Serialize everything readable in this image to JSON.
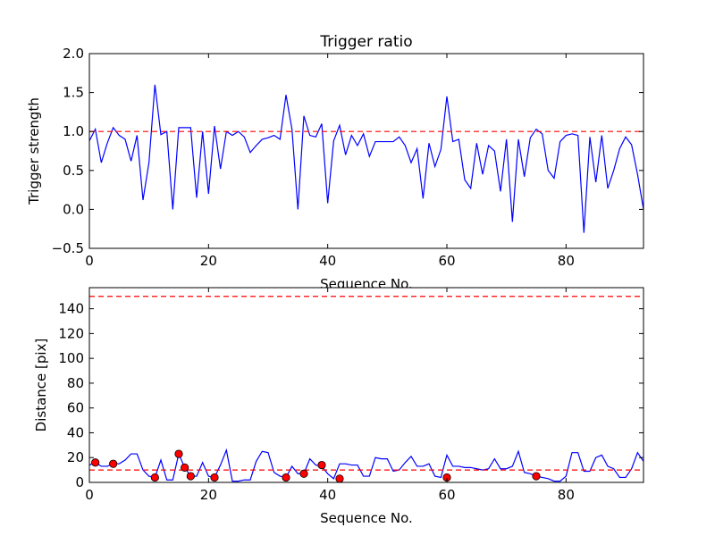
{
  "chart_data": [
    {
      "type": "line",
      "title": "Trigger ratio",
      "xlabel": "Sequence No.",
      "ylabel": "Trigger strength",
      "xlim": [
        0,
        93
      ],
      "ylim": [
        -0.5,
        2.0
      ],
      "xticks": [
        0,
        20,
        40,
        60,
        80
      ],
      "xtick_labels": [
        "0",
        "20",
        "40",
        "60",
        "80"
      ],
      "yticks": [
        -0.5,
        0.0,
        0.5,
        1.0,
        1.5,
        2.0
      ],
      "ytick_labels": [
        "−0.5",
        "0.0",
        "0.5",
        "1.0",
        "1.5",
        "2.0"
      ],
      "grid": false,
      "series": [
        {
          "color": "#0000ff",
          "style": "solid",
          "x": [
            0,
            1,
            2,
            3,
            4,
            5,
            6,
            7,
            8,
            9,
            10,
            11,
            12,
            13,
            14,
            15,
            16,
            17,
            18,
            19,
            20,
            21,
            22,
            23,
            24,
            25,
            26,
            27,
            28,
            29,
            30,
            31,
            32,
            33,
            34,
            35,
            36,
            37,
            38,
            39,
            40,
            41,
            42,
            43,
            44,
            45,
            46,
            47,
            48,
            49,
            50,
            51,
            52,
            53,
            54,
            55,
            56,
            57,
            58,
            59,
            60,
            61,
            62,
            63,
            64,
            65,
            66,
            67,
            68,
            69,
            70,
            71,
            72,
            73,
            74,
            75,
            76,
            77,
            78,
            79,
            80,
            81,
            82,
            83,
            84,
            85,
            86,
            87,
            88,
            89,
            90,
            91,
            92,
            93
          ],
          "y": [
            0.88,
            1.03,
            0.6,
            0.85,
            1.05,
            0.95,
            0.9,
            0.62,
            0.95,
            0.12,
            0.6,
            1.6,
            0.96,
            1.0,
            0.0,
            1.05,
            1.05,
            1.05,
            0.15,
            1.0,
            0.2,
            1.07,
            0.52,
            1.0,
            0.95,
            1.0,
            0.93,
            0.73,
            0.82,
            0.9,
            0.92,
            0.95,
            0.9,
            1.47,
            1.03,
            0.0,
            1.2,
            0.95,
            0.93,
            1.1,
            0.08,
            0.88,
            1.08,
            0.7,
            0.95,
            0.82,
            0.97,
            0.68,
            0.87,
            0.87,
            0.87,
            0.87,
            0.93,
            0.82,
            0.6,
            0.78,
            0.14,
            0.85,
            0.55,
            0.77,
            1.45,
            0.87,
            0.9,
            0.38,
            0.27,
            0.85,
            0.45,
            0.82,
            0.75,
            0.23,
            0.9,
            -0.16,
            0.9,
            0.42,
            0.92,
            1.03,
            0.97,
            0.5,
            0.4,
            0.87,
            0.95,
            0.97,
            0.95,
            -0.3,
            0.93,
            0.35,
            0.95,
            0.27,
            0.5,
            0.78,
            0.93,
            0.83,
            0.45,
            0.0
          ]
        },
        {
          "color": "#ff0000",
          "style": "dashed",
          "x": [
            0,
            93
          ],
          "y": [
            1.0,
            1.0
          ]
        }
      ]
    },
    {
      "type": "line",
      "title": "",
      "xlabel": "Sequence No.",
      "ylabel": "Distance [pix]",
      "xlim": [
        0,
        93
      ],
      "ylim": [
        0,
        157
      ],
      "xticks": [
        0,
        20,
        40,
        60,
        80
      ],
      "xtick_labels": [
        "0",
        "20",
        "40",
        "60",
        "80"
      ],
      "yticks": [
        0,
        20,
        40,
        60,
        80,
        100,
        120,
        140
      ],
      "ytick_labels": [
        "0",
        "20",
        "40",
        "60",
        "80",
        "100",
        "120",
        "140"
      ],
      "grid": false,
      "series": [
        {
          "color": "#0000ff",
          "style": "solid",
          "x": [
            0,
            1,
            2,
            3,
            4,
            5,
            6,
            7,
            8,
            9,
            10,
            11,
            12,
            13,
            14,
            15,
            16,
            17,
            18,
            19,
            20,
            21,
            22,
            23,
            24,
            25,
            26,
            27,
            28,
            29,
            30,
            31,
            32,
            33,
            34,
            35,
            36,
            37,
            38,
            39,
            40,
            41,
            42,
            43,
            44,
            45,
            46,
            47,
            48,
            49,
            50,
            51,
            52,
            53,
            54,
            55,
            56,
            57,
            58,
            59,
            60,
            61,
            62,
            63,
            64,
            65,
            66,
            67,
            68,
            69,
            70,
            71,
            72,
            73,
            74,
            75,
            76,
            77,
            78,
            79,
            80,
            81,
            82,
            83,
            84,
            85,
            86,
            87,
            88,
            89,
            90,
            91,
            92,
            93
          ],
          "y": [
            14,
            16,
            13,
            13,
            15,
            15,
            18,
            23,
            23,
            10,
            5,
            4,
            18,
            2,
            2,
            23,
            12,
            5,
            5,
            16,
            5,
            4,
            14,
            26,
            1,
            1,
            2,
            2,
            17,
            25,
            24,
            8,
            5,
            4,
            13,
            7,
            7,
            19,
            14,
            13,
            7,
            3,
            15,
            15,
            14,
            14,
            5,
            5,
            20,
            19,
            19,
            9,
            10,
            16,
            21,
            13,
            13,
            15,
            5,
            4,
            22,
            13,
            13,
            12,
            12,
            11,
            10,
            11,
            19,
            11,
            11,
            13,
            25,
            8,
            7,
            5,
            4,
            3,
            1,
            1,
            5,
            24,
            24,
            9,
            9,
            20,
            22,
            13,
            11,
            4,
            4,
            11,
            24,
            17
          ]
        },
        {
          "color": "#ff0000",
          "style": "dashed",
          "x": [
            0,
            93
          ],
          "y": [
            10,
            10
          ]
        },
        {
          "color": "#ff0000",
          "style": "dashed",
          "x": [
            0,
            93
          ],
          "y": [
            150,
            150
          ]
        },
        {
          "color": "#ff0000",
          "style": "markers",
          "x": [
            1,
            4,
            11,
            15,
            16,
            17,
            21,
            33,
            36,
            39,
            42,
            60,
            75
          ],
          "y": [
            16,
            15,
            4,
            23,
            12,
            5,
            4,
            4,
            7,
            14,
            3,
            4,
            5
          ]
        }
      ]
    }
  ]
}
